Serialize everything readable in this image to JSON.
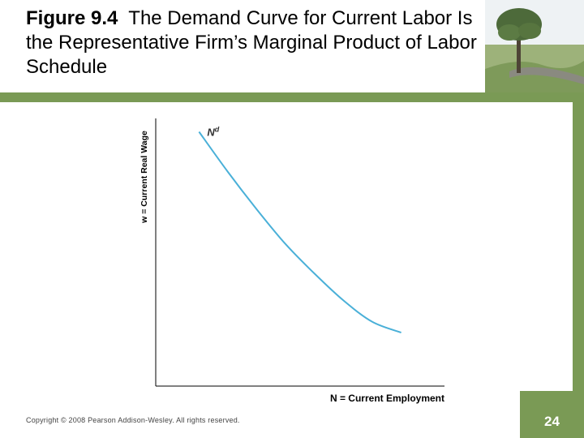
{
  "slide": {
    "figure_label": "Figure 9.4",
    "title_text": "The Demand Curve for Current Labor Is the Representative Firm’s Marginal Product of Labor Schedule",
    "copyright": "Copyright © 2008 Pearson Addison-Wesley. All rights reserved.",
    "page_number": "24"
  },
  "theme": {
    "accent_green": "#7a9a55",
    "curve_color": "#4ab0d8"
  },
  "chart_data": {
    "type": "line",
    "title": "",
    "xlabel": "N = Current Employment",
    "ylabel": "w = Current Real Wage",
    "axis_ticks": "none",
    "grid": false,
    "series": [
      {
        "name": "Nd",
        "x": [
          0.15,
          0.25,
          0.35,
          0.45,
          0.55,
          0.65,
          0.75,
          0.85
        ],
        "y": [
          0.95,
          0.8,
          0.66,
          0.53,
          0.42,
          0.32,
          0.24,
          0.2
        ]
      }
    ],
    "xlim": [
      0,
      1
    ],
    "ylim": [
      0,
      1
    ]
  }
}
